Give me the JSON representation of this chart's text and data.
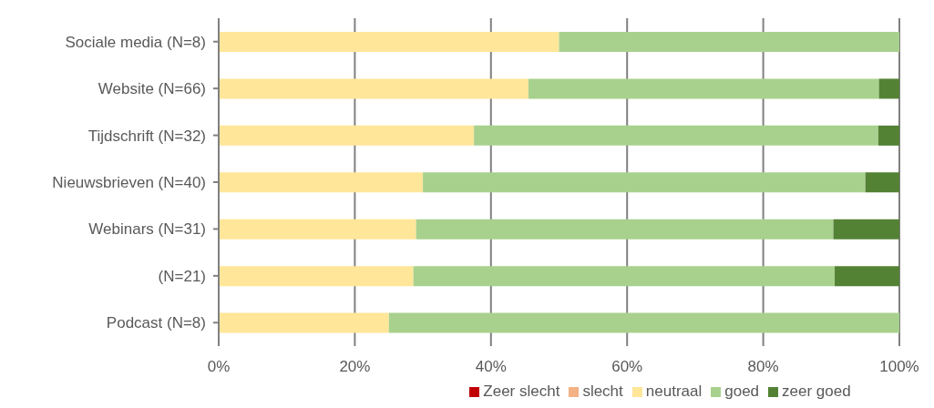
{
  "chart_data": {
    "type": "bar",
    "orientation": "horizontal",
    "stacked": true,
    "categories": [
      "Sociale media (N=8)",
      "Website (N=66)",
      "Tijdschrift (N=32)",
      "Nieuwsbrieven (N=40)",
      "Webinars (N=31)",
      "(N=21)",
      "Podcast (N=8)"
    ],
    "series": [
      {
        "name": "Zeer slecht",
        "color": "#c00000",
        "values": [
          0,
          0,
          0,
          0,
          0,
          0,
          0
        ]
      },
      {
        "name": "slecht",
        "color": "#f4b183",
        "values": [
          0,
          0,
          0,
          0,
          0,
          0,
          0
        ]
      },
      {
        "name": "neutraal",
        "color": "#ffe699",
        "values": [
          50,
          45.5,
          37.5,
          30,
          29,
          28.6,
          25
        ]
      },
      {
        "name": "goed",
        "color": "#a9d18e",
        "values": [
          50,
          51.5,
          59.4,
          65,
          61.3,
          61.9,
          75
        ]
      },
      {
        "name": "zeer goed",
        "color": "#548235",
        "values": [
          0,
          3,
          3.1,
          5,
          9.7,
          9.5,
          0
        ]
      }
    ],
    "xlim": [
      0,
      100
    ],
    "xticks": [
      {
        "value": 0,
        "label": "0%"
      },
      {
        "value": 20,
        "label": "20%"
      },
      {
        "value": 40,
        "label": "40%"
      },
      {
        "value": 60,
        "label": "60%"
      },
      {
        "value": 80,
        "label": "80%"
      },
      {
        "value": 100,
        "label": "100%"
      }
    ],
    "grid": "x",
    "legend": "bottom"
  }
}
